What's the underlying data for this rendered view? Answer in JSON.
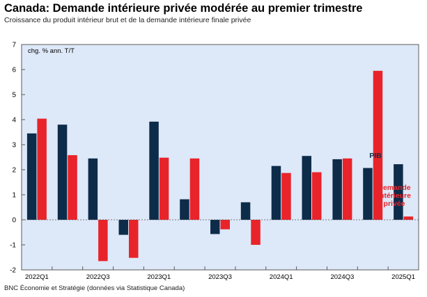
{
  "title": "Canada: Demande intérieure privée modérée au premier trimestre",
  "subtitle": "Croissance du produit intérieur brut et de la demande intérieure finale privée",
  "source": "BNC Économie et Stratégie (données via Statistique Canada)",
  "colors": {
    "plot_bg": "#dde8f8",
    "pib": "#0d2c4a",
    "demande": "#e8242a",
    "frame": "#5a5a5a"
  },
  "chart_data": {
    "type": "bar",
    "unit_label": "chg. % ann. T/T",
    "categories": [
      "2022Q1",
      "2022Q2",
      "2022Q3",
      "2022Q4",
      "2023Q1",
      "2023Q2",
      "2023Q3",
      "2023Q4",
      "2024Q1",
      "2024Q2",
      "2024Q3",
      "2024Q4",
      "2025Q1"
    ],
    "tick_labels": [
      "2022Q1",
      "",
      "2022Q3",
      "",
      "2023Q1",
      "",
      "2023Q3",
      "",
      "2024Q1",
      "",
      "2024Q3",
      "",
      "2025Q1"
    ],
    "ylim": [
      -2,
      7
    ],
    "yticks": [
      -2,
      -1,
      0,
      1,
      2,
      3,
      4,
      5,
      6,
      7
    ],
    "grid": false,
    "series": [
      {
        "name": "PIB",
        "values": [
          3.45,
          3.8,
          2.45,
          -0.6,
          3.92,
          0.82,
          -0.57,
          0.7,
          2.15,
          2.55,
          2.42,
          2.07,
          2.22
        ]
      },
      {
        "name": "Demande intérieure privée",
        "values": [
          4.04,
          2.58,
          -1.65,
          -1.52,
          2.48,
          2.45,
          -0.38,
          -1.0,
          1.87,
          1.9,
          2.45,
          5.95,
          0.13
        ]
      }
    ],
    "legend_labels": [
      {
        "series": 0,
        "lines": [
          "PIB"
        ]
      },
      {
        "series": 1,
        "lines": [
          "Demande",
          "intérieure",
          "privée"
        ]
      }
    ]
  }
}
